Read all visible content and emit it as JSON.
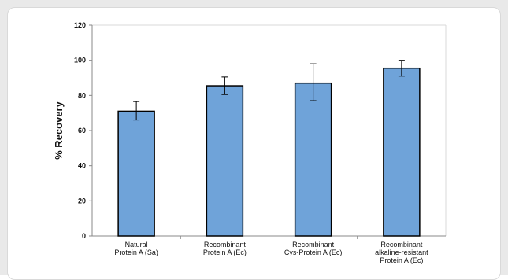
{
  "chart_data": {
    "type": "bar",
    "categories": [
      [
        "Natural",
        "Protein A (Sa)"
      ],
      [
        "Recombinant",
        "Protein A (Ec)"
      ],
      [
        "Recombinant",
        "Cys-Protein A (Ec)"
      ],
      [
        "Recombinant",
        "alkaline-resistant",
        "Protein A (Ec)"
      ]
    ],
    "values": [
      71,
      85.5,
      87,
      95.5
    ],
    "error_low": [
      66,
      80.5,
      77,
      91
    ],
    "error_high": [
      76.5,
      90.5,
      98,
      100
    ],
    "ylabel": "% Recovery",
    "xlabel": "",
    "ylim": [
      0,
      120
    ],
    "yticks": [
      0,
      20,
      40,
      60,
      80,
      100,
      120
    ],
    "grid": false,
    "legend": "none",
    "colors": {
      "bar": "#6fa3d9",
      "bar_edge": "#000000",
      "axis": "#888888",
      "frame": "#d9d9d9",
      "background": "#e9e9e9"
    }
  }
}
